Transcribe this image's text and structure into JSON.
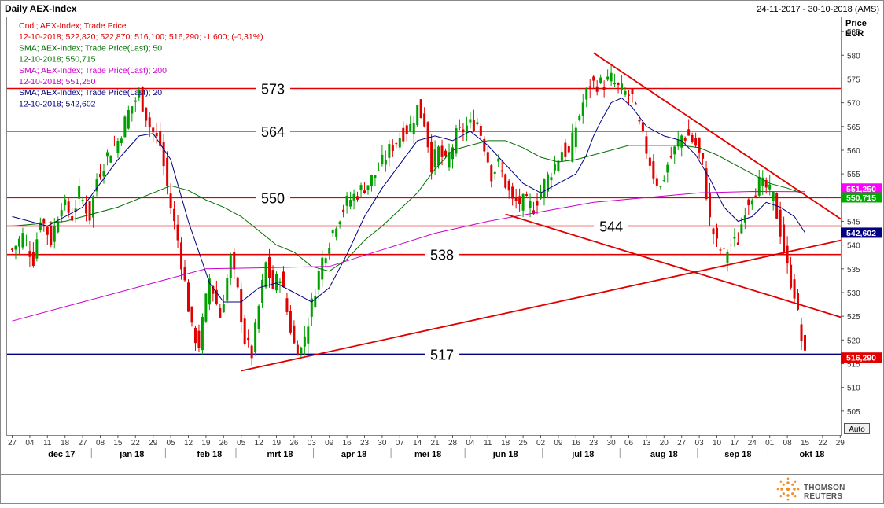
{
  "header": {
    "title": "Daily AEX-Index",
    "date_range": "24-11-2017 - 30-10-2018 (AMS)",
    "price_label": "Price",
    "currency_label": "EUR",
    "auto_button": "Auto"
  },
  "legend": [
    {
      "text": "Cndl; AEX-Index; Trade Price",
      "color": "#e00000"
    },
    {
      "text": "12-10-2018; 522,820; 522,870; 516,100; 516,290; -1,600; (-0,31%)",
      "color": "#e00000"
    },
    {
      "text": "SMA; AEX-Index; Trade Price(Last);  50",
      "color": "#007000"
    },
    {
      "text": "12-10-2018; 550,715",
      "color": "#007000"
    },
    {
      "text": "SMA; AEX-Index; Trade Price(Last);  200",
      "color": "#cc00cc"
    },
    {
      "text": "12-10-2018; 551,250",
      "color": "#cc00cc"
    },
    {
      "text": "SMA; AEX-Index; Trade Price(Last);  20",
      "color": "#000080"
    },
    {
      "text": "12-10-2018; 542,602",
      "color": "#000080"
    }
  ],
  "brand": {
    "name": "THOMSON REUTERS",
    "logo_icon": "thomson-reuters-logo-icon"
  },
  "chart_data": {
    "type": "candlestick",
    "ylim": [
      500,
      588
    ],
    "y_ticks": [
      505,
      510,
      515,
      520,
      525,
      530,
      535,
      540,
      545,
      550,
      555,
      560,
      565,
      570,
      575,
      580,
      585
    ],
    "x_day_labels": [
      {
        "i": 0,
        "label": "27"
      },
      {
        "i": 5,
        "label": "04"
      },
      {
        "i": 10,
        "label": "11"
      },
      {
        "i": 15,
        "label": "18"
      },
      {
        "i": 20,
        "label": "27"
      },
      {
        "i": 25,
        "label": "08"
      },
      {
        "i": 30,
        "label": "15"
      },
      {
        "i": 35,
        "label": "22"
      },
      {
        "i": 40,
        "label": "29"
      },
      {
        "i": 45,
        "label": "05"
      },
      {
        "i": 50,
        "label": "12"
      },
      {
        "i": 55,
        "label": "19"
      },
      {
        "i": 60,
        "label": "26"
      },
      {
        "i": 65,
        "label": "05"
      },
      {
        "i": 70,
        "label": "12"
      },
      {
        "i": 75,
        "label": "19"
      },
      {
        "i": 80,
        "label": "26"
      },
      {
        "i": 85,
        "label": "03"
      },
      {
        "i": 90,
        "label": "09"
      },
      {
        "i": 95,
        "label": "16"
      },
      {
        "i": 100,
        "label": "23"
      },
      {
        "i": 105,
        "label": "30"
      },
      {
        "i": 110,
        "label": "07"
      },
      {
        "i": 115,
        "label": "14"
      },
      {
        "i": 120,
        "label": "21"
      },
      {
        "i": 125,
        "label": "28"
      },
      {
        "i": 130,
        "label": "04"
      },
      {
        "i": 135,
        "label": "11"
      },
      {
        "i": 140,
        "label": "18"
      },
      {
        "i": 145,
        "label": "25"
      },
      {
        "i": 150,
        "label": "02"
      },
      {
        "i": 155,
        "label": "09"
      },
      {
        "i": 160,
        "label": "16"
      },
      {
        "i": 165,
        "label": "23"
      },
      {
        "i": 170,
        "label": "30"
      },
      {
        "i": 175,
        "label": "06"
      },
      {
        "i": 180,
        "label": "13"
      },
      {
        "i": 185,
        "label": "20"
      },
      {
        "i": 190,
        "label": "27"
      },
      {
        "i": 195,
        "label": "03"
      },
      {
        "i": 200,
        "label": "10"
      },
      {
        "i": 205,
        "label": "17"
      },
      {
        "i": 210,
        "label": "24"
      },
      {
        "i": 215,
        "label": "01"
      },
      {
        "i": 220,
        "label": "08"
      },
      {
        "i": 225,
        "label": "15"
      },
      {
        "i": 230,
        "label": "22"
      },
      {
        "i": 235,
        "label": "29"
      }
    ],
    "x_month_labels": [
      {
        "i": 14,
        "label": "dec 17"
      },
      {
        "i": 34,
        "label": "jan 18"
      },
      {
        "i": 56,
        "label": "feb 18"
      },
      {
        "i": 76,
        "label": "mrt 18"
      },
      {
        "i": 97,
        "label": "apr 18"
      },
      {
        "i": 118,
        "label": "mei 18"
      },
      {
        "i": 140,
        "label": "jun 18"
      },
      {
        "i": 162,
        "label": "jul 18"
      },
      {
        "i": 185,
        "label": "aug 18"
      },
      {
        "i": 206,
        "label": "sep 18"
      },
      {
        "i": 227,
        "label": "okt 18"
      }
    ],
    "support_resistance": [
      {
        "value": 573,
        "label": "573",
        "label_i": 74,
        "color": "#e00000"
      },
      {
        "value": 564,
        "label": "564",
        "label_i": 74,
        "color": "#e00000"
      },
      {
        "value": 550,
        "label": "550",
        "label_i": 74,
        "color": "#e00000"
      },
      {
        "value": 544,
        "label": "544",
        "label_i": 170,
        "color": "#e00000"
      },
      {
        "value": 538,
        "label": "538",
        "label_i": 122,
        "color": "#e00000"
      },
      {
        "value": 517,
        "label": "517",
        "label_i": 122,
        "color": "#000080"
      }
    ],
    "trendlines": [
      {
        "from": [
          65,
          513.5
        ],
        "to": [
          240,
          541
        ]
      },
      {
        "from": [
          140,
          546.5
        ],
        "to": [
          240,
          524.8
        ]
      },
      {
        "from": [
          165,
          580.5
        ],
        "to": [
          240,
          545.5
        ]
      }
    ],
    "price_tags": [
      {
        "value": 551.25,
        "label": "551,250",
        "fill": "#ff00ff",
        "text_color": "#ffffff"
      },
      {
        "value": 550.715,
        "label": "550,715",
        "fill": "#00aa00",
        "text_color": "#ffffff"
      },
      {
        "value": 542.602,
        "label": "542,602",
        "fill": "#000080",
        "text_color": "#ffffff"
      },
      {
        "value": 516.29,
        "label": "516,290",
        "fill": "#e00000",
        "text_color": "#ffffff"
      }
    ],
    "series": [
      {
        "name": "Cndl; AEX-Index; Trade Price",
        "type": "candle",
        "ohlc_start_i": 0,
        "keypoints": [
          [
            0,
            539
          ],
          [
            3,
            542
          ],
          [
            6,
            537
          ],
          [
            8,
            546
          ],
          [
            11,
            541
          ],
          [
            14,
            549
          ],
          [
            17,
            546
          ],
          [
            19,
            551
          ],
          [
            22,
            546
          ],
          [
            24,
            554
          ],
          [
            27,
            559
          ],
          [
            30,
            562
          ],
          [
            33,
            568
          ],
          [
            36,
            572
          ],
          [
            39,
            565
          ],
          [
            42,
            561
          ],
          [
            45,
            548
          ],
          [
            47,
            541
          ],
          [
            49,
            532
          ],
          [
            51,
            522
          ],
          [
            53,
            519
          ],
          [
            56,
            533
          ],
          [
            59,
            525
          ],
          [
            62,
            537
          ],
          [
            64,
            530
          ],
          [
            66,
            520
          ],
          [
            68,
            517
          ],
          [
            70,
            527
          ],
          [
            72,
            536
          ],
          [
            74,
            531
          ],
          [
            76,
            534
          ],
          [
            78,
            526
          ],
          [
            80,
            519
          ],
          [
            82,
            518
          ],
          [
            84,
            524
          ],
          [
            86,
            531
          ],
          [
            88,
            537
          ],
          [
            90,
            541
          ],
          [
            92,
            545
          ],
          [
            95,
            549
          ],
          [
            98,
            551
          ],
          [
            101,
            553
          ],
          [
            104,
            556
          ],
          [
            107,
            560
          ],
          [
            110,
            563
          ],
          [
            113,
            565
          ],
          [
            115,
            569
          ],
          [
            117,
            566
          ],
          [
            119,
            557
          ],
          [
            121,
            560
          ],
          [
            123,
            557
          ],
          [
            126,
            563
          ],
          [
            129,
            565
          ],
          [
            132,
            566
          ],
          [
            134,
            561
          ],
          [
            136,
            555
          ],
          [
            138,
            557
          ],
          [
            140,
            553
          ],
          [
            142,
            549
          ],
          [
            145,
            549
          ],
          [
            148,
            548
          ],
          [
            151,
            553
          ],
          [
            154,
            557
          ],
          [
            156,
            560
          ],
          [
            158,
            559
          ],
          [
            160,
            565
          ],
          [
            162,
            570
          ],
          [
            164,
            574
          ],
          [
            166,
            574
          ],
          [
            168,
            574
          ],
          [
            170,
            575
          ],
          [
            172,
            573
          ],
          [
            174,
            572
          ],
          [
            176,
            571
          ],
          [
            178,
            565
          ],
          [
            180,
            560
          ],
          [
            182,
            555
          ],
          [
            184,
            552
          ],
          [
            186,
            557
          ],
          [
            188,
            560
          ],
          [
            190,
            563
          ],
          [
            192,
            563
          ],
          [
            194,
            561
          ],
          [
            196,
            557
          ],
          [
            198,
            545
          ],
          [
            200,
            540
          ],
          [
            202,
            538
          ],
          [
            204,
            540
          ],
          [
            206,
            541
          ],
          [
            208,
            548
          ],
          [
            210,
            551
          ],
          [
            212,
            553
          ],
          [
            214,
            552
          ],
          [
            216,
            550
          ],
          [
            218,
            543
          ],
          [
            220,
            535
          ],
          [
            222,
            530
          ],
          [
            224,
            520
          ],
          [
            225,
            516.3
          ]
        ]
      },
      {
        "name": "SMA; AEX-Index; Trade Price(Last);  20",
        "type": "line",
        "color": "#000080",
        "points": [
          [
            0,
            546
          ],
          [
            10,
            544
          ],
          [
            20,
            548
          ],
          [
            30,
            558
          ],
          [
            36,
            563
          ],
          [
            40,
            563.5
          ],
          [
            45,
            558
          ],
          [
            50,
            545
          ],
          [
            56,
            532
          ],
          [
            60,
            528
          ],
          [
            65,
            528
          ],
          [
            70,
            531
          ],
          [
            75,
            532
          ],
          [
            80,
            530
          ],
          [
            85,
            528
          ],
          [
            90,
            531
          ],
          [
            95,
            538
          ],
          [
            100,
            546
          ],
          [
            105,
            552
          ],
          [
            110,
            557
          ],
          [
            115,
            562
          ],
          [
            120,
            563
          ],
          [
            125,
            562
          ],
          [
            130,
            564
          ],
          [
            135,
            561
          ],
          [
            140,
            557
          ],
          [
            145,
            553
          ],
          [
            150,
            551
          ],
          [
            155,
            553
          ],
          [
            160,
            555
          ],
          [
            163,
            559
          ],
          [
            165,
            563
          ],
          [
            167,
            566
          ],
          [
            170,
            570
          ],
          [
            173,
            571
          ],
          [
            176,
            569
          ],
          [
            180,
            565
          ],
          [
            185,
            563
          ],
          [
            190,
            562
          ],
          [
            194,
            559
          ],
          [
            198,
            554
          ],
          [
            202,
            548
          ],
          [
            206,
            545
          ],
          [
            210,
            546
          ],
          [
            214,
            549
          ],
          [
            218,
            548
          ],
          [
            222,
            546
          ],
          [
            225,
            542.6
          ]
        ]
      },
      {
        "name": "SMA; AEX-Index; Trade Price(Last);  50",
        "type": "line",
        "color": "#007000",
        "points": [
          [
            0,
            544
          ],
          [
            15,
            545
          ],
          [
            30,
            548
          ],
          [
            40,
            551
          ],
          [
            45,
            552.5
          ],
          [
            50,
            551.5
          ],
          [
            55,
            549.5
          ],
          [
            60,
            548
          ],
          [
            65,
            546
          ],
          [
            70,
            543
          ],
          [
            75,
            540
          ],
          [
            80,
            538.5
          ],
          [
            85,
            535.5
          ],
          [
            90,
            534.5
          ],
          [
            95,
            537
          ],
          [
            100,
            541
          ],
          [
            105,
            544
          ],
          [
            110,
            547.5
          ],
          [
            115,
            551
          ],
          [
            120,
            556
          ],
          [
            125,
            560
          ],
          [
            130,
            561
          ],
          [
            135,
            562
          ],
          [
            140,
            562
          ],
          [
            145,
            560.5
          ],
          [
            150,
            558.5
          ],
          [
            155,
            557.5
          ],
          [
            160,
            558
          ],
          [
            165,
            559
          ],
          [
            170,
            560
          ],
          [
            175,
            561
          ],
          [
            180,
            561
          ],
          [
            185,
            561
          ],
          [
            190,
            561
          ],
          [
            195,
            560.5
          ],
          [
            200,
            559
          ],
          [
            205,
            557
          ],
          [
            210,
            555
          ],
          [
            215,
            553
          ],
          [
            220,
            552
          ],
          [
            225,
            550.7
          ]
        ]
      },
      {
        "name": "SMA; AEX-Index; Trade Price(Last);  200",
        "type": "line",
        "color": "#cc00cc",
        "points": [
          [
            0,
            524
          ],
          [
            20,
            528
          ],
          [
            40,
            532
          ],
          [
            55,
            535
          ],
          [
            70,
            535.2
          ],
          [
            90,
            535.5
          ],
          [
            105,
            539
          ],
          [
            120,
            542.5
          ],
          [
            135,
            545
          ],
          [
            150,
            547
          ],
          [
            165,
            549
          ],
          [
            180,
            550
          ],
          [
            195,
            551
          ],
          [
            210,
            551.3
          ],
          [
            225,
            551.25
          ]
        ]
      }
    ]
  }
}
